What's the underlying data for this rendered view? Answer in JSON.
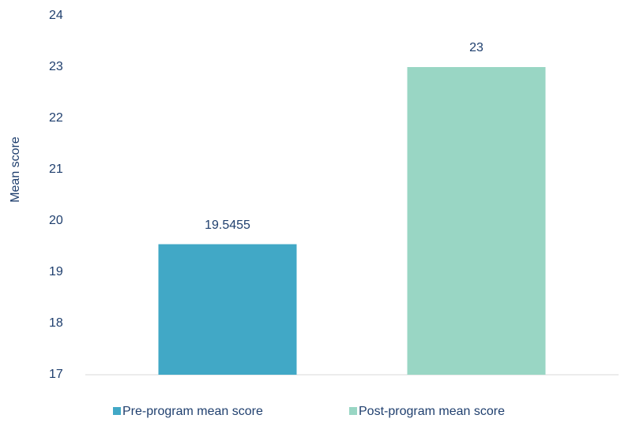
{
  "chart_data": {
    "type": "bar",
    "categories": [
      null
    ],
    "series": [
      {
        "name": "Pre-program mean score",
        "color": "#41a8c6",
        "values": [
          19.5455
        ]
      },
      {
        "name": "Post-program mean score",
        "color": "#99d6c4",
        "values": [
          23
        ]
      }
    ],
    "y_label": "Mean score",
    "ylim": [
      17,
      24
    ],
    "yticks": [
      17,
      18,
      19,
      20,
      21,
      22,
      23,
      24
    ],
    "grid": false,
    "legend": "bottom"
  }
}
